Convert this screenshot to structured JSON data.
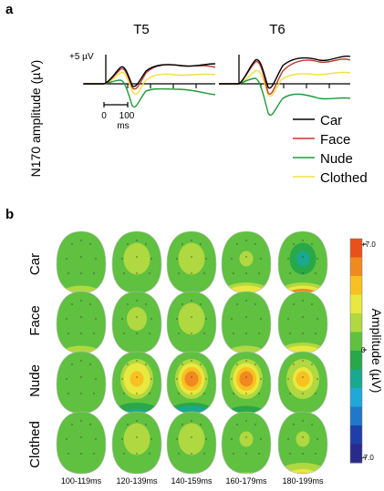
{
  "panel_a": {
    "label": "a",
    "y_axis_label": "N170 amplitude (µV)",
    "scale_label": "+5 µV",
    "time_ticks": [
      "0",
      "100"
    ],
    "time_unit": "ms",
    "electrodes": [
      "T5",
      "T6"
    ],
    "legend": [
      {
        "name": "Car",
        "color": "#000000"
      },
      {
        "name": "Face",
        "color": "#c0392b"
      },
      {
        "name": "Nude",
        "color": "#1e9a3a"
      },
      {
        "name": "Clothed",
        "color": "#f0e040"
      }
    ]
  },
  "panel_b": {
    "label": "b",
    "rows": [
      "Car",
      "Face",
      "Nude",
      "Clothed"
    ],
    "columns": [
      "100-119ms",
      "120-139ms",
      "140-159ms",
      "160-179ms",
      "180-199ms"
    ],
    "colorbar": {
      "title": "Amplitude (µV)",
      "max_label": "+7.0",
      "mid_label": "0",
      "min_label": "-7.0",
      "stops": [
        "#e8501c",
        "#f08a20",
        "#f8c020",
        "#e8e840",
        "#b0d840",
        "#60c040",
        "#28a848",
        "#1aa890",
        "#20a8d8",
        "#1f78c8",
        "#1f3fa8",
        "#2a2a8a"
      ]
    },
    "maps": [
      [
        {
          "center": 0.02,
          "band": 0.3
        },
        {
          "center": 0.18,
          "band": 0.05
        },
        {
          "center": 0.2,
          "band": 0.05
        },
        {
          "center": 0.1,
          "band": 0.55
        },
        {
          "center": -0.3,
          "band": 0.85
        }
      ],
      [
        {
          "center": 0.02,
          "band": 0.2
        },
        {
          "center": 0.15,
          "band": 0.05
        },
        {
          "center": 0.2,
          "band": 0.05
        },
        {
          "center": 0.05,
          "band": 0.3
        },
        {
          "center": 0.05,
          "band": 0.55
        }
      ],
      [
        {
          "center": 0.05,
          "band": 0.1
        },
        {
          "center": 0.55,
          "band": -0.55
        },
        {
          "center": 0.7,
          "band": -0.6
        },
        {
          "center": 0.65,
          "band": -0.3
        },
        {
          "center": 0.45,
          "band": -0.05
        }
      ],
      [
        {
          "center": 0.02,
          "band": 0.05
        },
        {
          "center": 0.2,
          "band": 0.05
        },
        {
          "center": 0.22,
          "band": 0.05
        },
        {
          "center": 0.1,
          "band": 0.1
        },
        {
          "center": 0.1,
          "band": 0.45
        }
      ]
    ]
  }
}
